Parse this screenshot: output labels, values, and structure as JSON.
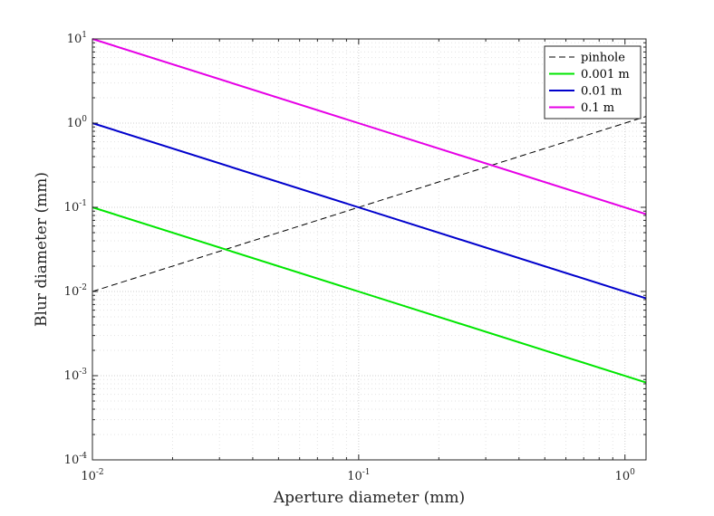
{
  "chart_data": {
    "type": "line",
    "title": "",
    "xlabel": "Aperture diameter (mm)",
    "ylabel": "Blur diameter (mm)",
    "xscale": "log",
    "yscale": "log",
    "xlim": [
      0.01,
      1.2
    ],
    "ylim": [
      0.0001,
      10
    ],
    "grid": true,
    "minor_grid": true,
    "legend_position": "top-right",
    "x_ticks": [
      {
        "base": "10",
        "exp": "-2",
        "value": 0.01
      },
      {
        "base": "10",
        "exp": "-1",
        "value": 0.1
      },
      {
        "base": "10",
        "exp": "0",
        "value": 1
      }
    ],
    "y_ticks": [
      {
        "base": "10",
        "exp": "-4",
        "value": 0.0001
      },
      {
        "base": "10",
        "exp": "-3",
        "value": 0.001
      },
      {
        "base": "10",
        "exp": "-2",
        "value": 0.01
      },
      {
        "base": "10",
        "exp": "-1",
        "value": 0.1
      },
      {
        "base": "10",
        "exp": "0",
        "value": 1
      },
      {
        "base": "10",
        "exp": "1",
        "value": 10
      }
    ],
    "series": [
      {
        "name": "pinhole",
        "color": "#000000",
        "dash": "dashed",
        "points": [
          [
            0.01,
            0.01
          ],
          [
            1.2,
            1.2
          ]
        ]
      },
      {
        "name": "0.001 m",
        "color": "#00e600",
        "dash": "solid",
        "points": [
          [
            0.01,
            0.1
          ],
          [
            1.2,
            0.00083
          ]
        ]
      },
      {
        "name": "0.01 m",
        "color": "#0000cc",
        "dash": "solid",
        "points": [
          [
            0.01,
            1.0
          ],
          [
            1.2,
            0.0083
          ]
        ]
      },
      {
        "name": "0.1 m",
        "color": "#e600e6",
        "dash": "solid",
        "points": [
          [
            0.01,
            10.0
          ],
          [
            1.2,
            0.083
          ]
        ]
      }
    ]
  }
}
